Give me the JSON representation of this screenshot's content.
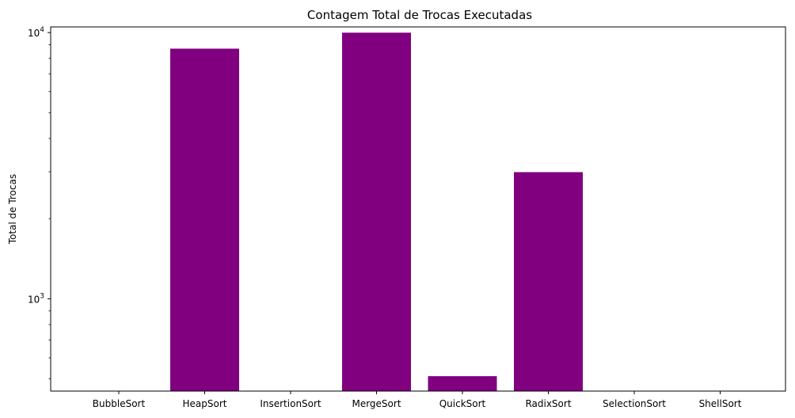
{
  "chart_data": {
    "type": "bar",
    "title": "Contagem Total de Trocas Executadas",
    "xlabel": "",
    "ylabel": "Total de Trocas",
    "yscale": "log",
    "ylim": [
      450,
      10500
    ],
    "yticks_major": [
      {
        "value": 1000,
        "base": "10",
        "exp": "3"
      },
      {
        "value": 10000,
        "base": "10",
        "exp": "4"
      }
    ],
    "yticks_minor": [
      500,
      600,
      700,
      800,
      900,
      2000,
      3000,
      4000,
      5000,
      6000,
      7000,
      8000,
      9000
    ],
    "categories": [
      "BubbleSort",
      "HeapSort",
      "InsertionSort",
      "MergeSort",
      "QuickSort",
      "RadixSort",
      "SelectionSort",
      "ShellSort"
    ],
    "values": [
      0,
      8700,
      0,
      9990,
      512,
      2990,
      0,
      0
    ],
    "bar_color": "#800080",
    "grid": false,
    "legend": "none"
  }
}
